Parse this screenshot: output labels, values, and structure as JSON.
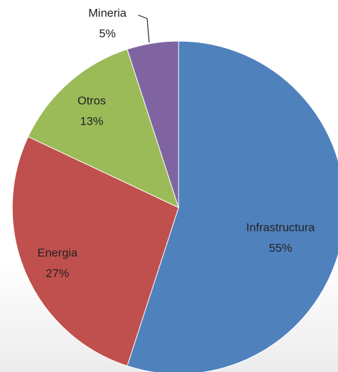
{
  "chart_data": {
    "type": "pie",
    "categories": [
      "Infrastructura",
      "Energia",
      "Otros",
      "Mineria"
    ],
    "values": [
      55,
      27,
      13,
      5
    ],
    "value_labels": [
      "55%",
      "27%",
      "13%",
      "5%"
    ],
    "colors": [
      "#4f81bd",
      "#c0504d",
      "#9bbb59",
      "#8064a2"
    ]
  }
}
